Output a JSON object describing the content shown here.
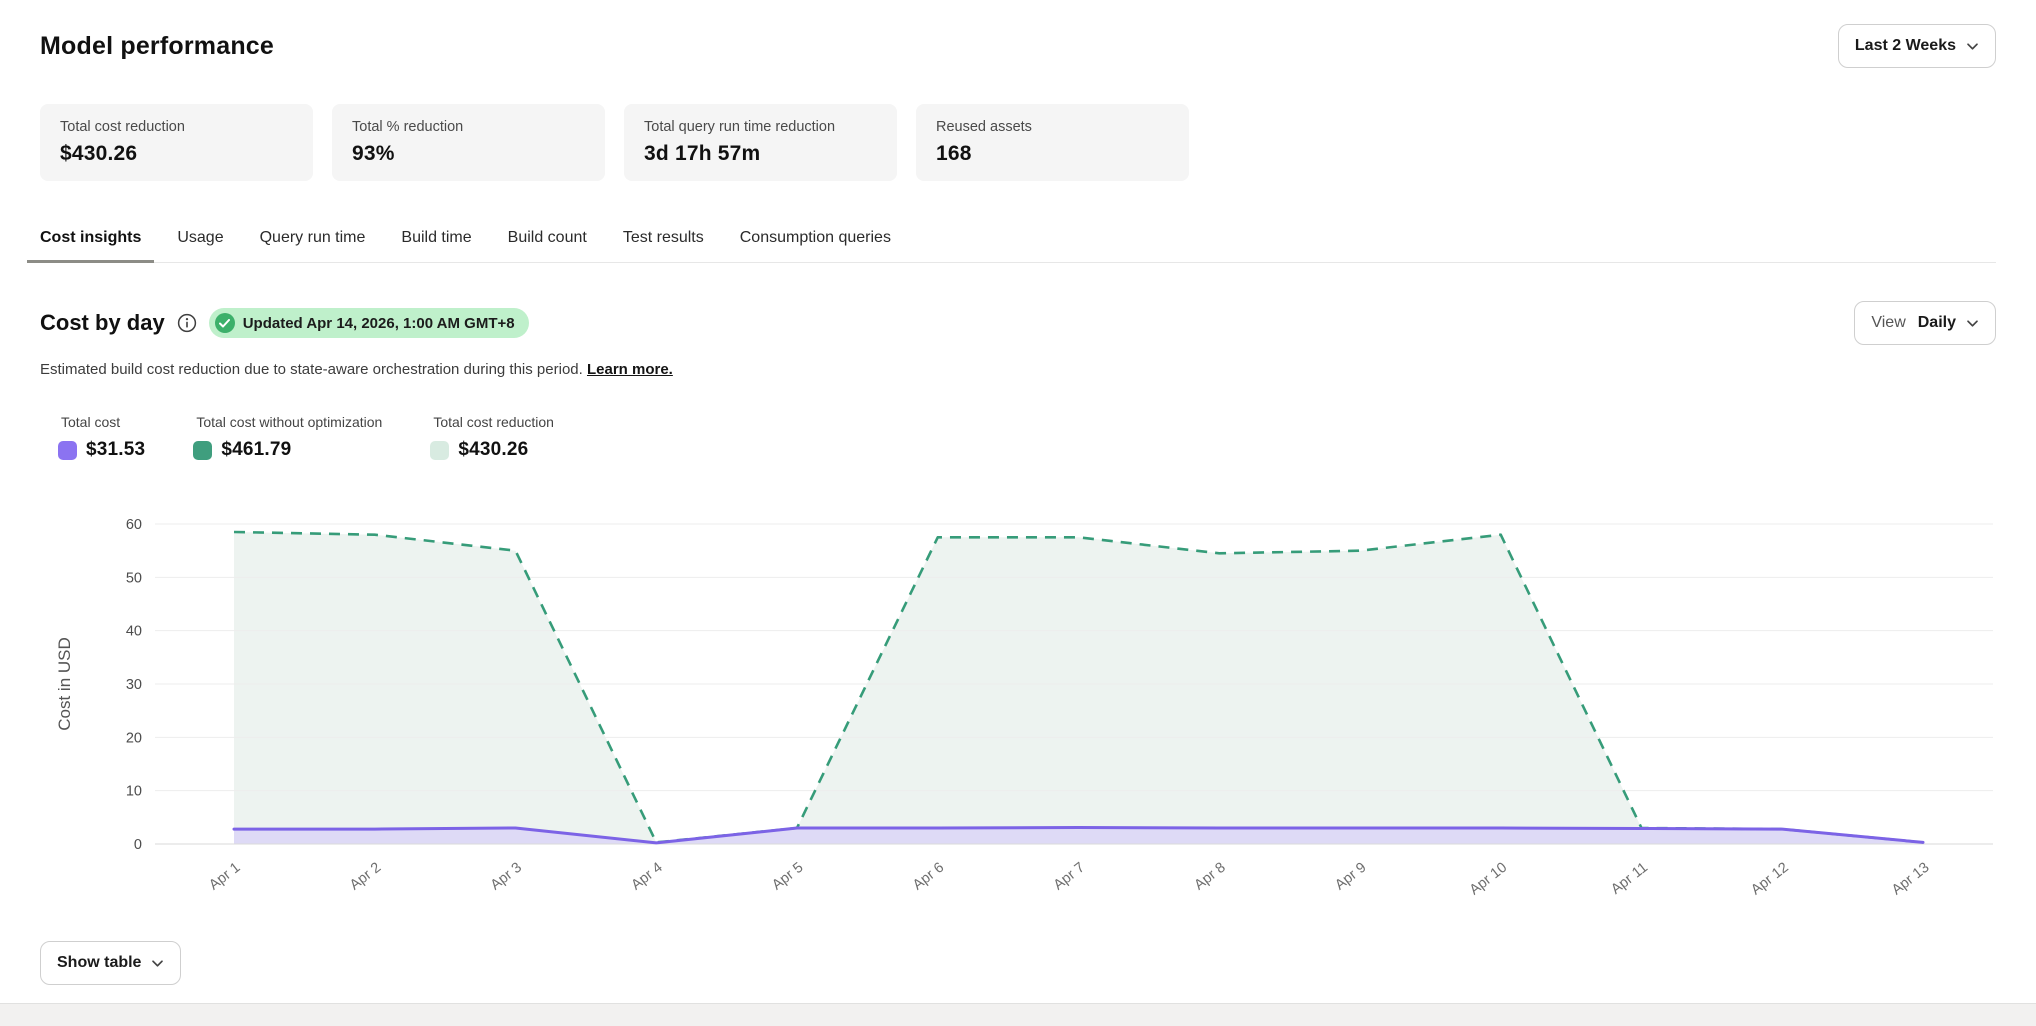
{
  "header": {
    "title": "Model performance",
    "period_selector": "Last 2 Weeks"
  },
  "stats": [
    {
      "label": "Total cost reduction",
      "value": "$430.26"
    },
    {
      "label": "Total % reduction",
      "value": "93%"
    },
    {
      "label": "Total query run time reduction",
      "value": "3d 17h 57m"
    },
    {
      "label": "Reused assets",
      "value": "168"
    }
  ],
  "tabs": [
    "Cost insights",
    "Usage",
    "Query run time",
    "Build time",
    "Build count",
    "Test results",
    "Consumption queries"
  ],
  "active_tab": "Cost insights",
  "section": {
    "title": "Cost by day",
    "info_icon": "info-icon",
    "updated_badge": "Updated Apr 14, 2026, 1:00 AM GMT+8",
    "badge_bg": "#bff0cb",
    "badge_check_color": "#3cb06a",
    "description": "Estimated build cost reduction due to state-aware orchestration during this period.",
    "learn_more": "Learn more.",
    "view_label": "View",
    "view_value": "Daily"
  },
  "legend": {
    "items": [
      {
        "label": "Total cost",
        "value": "$31.53",
        "color": "#8b73f1"
      },
      {
        "label": "Total cost without optimization",
        "value": "$461.79",
        "color": "#3f9e7e"
      },
      {
        "label": "Total cost reduction",
        "value": "$430.26",
        "color": "#d8ebe1"
      }
    ]
  },
  "chart_data": {
    "type": "area",
    "title": "Cost by day",
    "x": [
      "Apr 1",
      "Apr 2",
      "Apr 3",
      "Apr 4",
      "Apr 5",
      "Apr 6",
      "Apr 7",
      "Apr 8",
      "Apr 9",
      "Apr 10",
      "Apr 11",
      "Apr 12",
      "Apr 13"
    ],
    "series": [
      {
        "name": "Total cost",
        "values": [
          2.8,
          2.8,
          3.0,
          0.2,
          3.0,
          3.0,
          3.1,
          3.0,
          3.0,
          3.0,
          2.9,
          2.8,
          0.3
        ],
        "color": "#7c63e6",
        "fill": "#dedaf6",
        "style": "solid"
      },
      {
        "name": "Total cost without optimization",
        "values": [
          58.5,
          58.0,
          55.0,
          0.3,
          3.0,
          57.5,
          57.5,
          54.5,
          55.0,
          58.0,
          3.0,
          2.8,
          0.3
        ],
        "color": "#369c79",
        "fill": "#edf3f0",
        "style": "dashed"
      }
    ],
    "xlabel": "",
    "ylabel": "Cost in USD",
    "ylim": [
      0,
      60
    ],
    "yticks": [
      0,
      10,
      20,
      30,
      40,
      50,
      60
    ],
    "grid": true,
    "legend_position": "top-left"
  },
  "footer": {
    "show_table_label": "Show table"
  }
}
